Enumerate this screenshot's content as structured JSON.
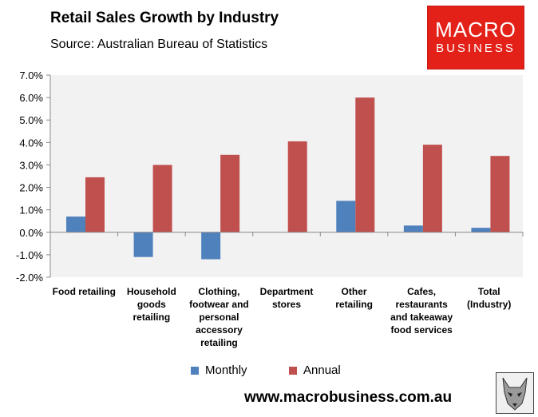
{
  "title": "Retail Sales Growth by Industry",
  "subtitle": "Source: Australian Bureau of Statistics",
  "logo": {
    "line1": "MACRO",
    "line2": "BUSINESS"
  },
  "website": "www.macrobusiness.com.au",
  "colors": {
    "monthly": "#4f81bd",
    "annual": "#c0504d",
    "plot_bg": "#f2f2f2",
    "logo_bg": "#e32119"
  },
  "chart_data": {
    "type": "bar",
    "title": "Retail Sales Growth by Industry",
    "xlabel": "",
    "ylabel": "",
    "ylim": [
      -2.0,
      7.0
    ],
    "y_ticks": [
      "7.0%",
      "6.0%",
      "5.0%",
      "4.0%",
      "3.0%",
      "2.0%",
      "1.0%",
      "0.0%",
      "-1.0%",
      "-2.0%"
    ],
    "y_tick_values": [
      7,
      6,
      5,
      4,
      3,
      2,
      1,
      0,
      -1,
      -2
    ],
    "categories": [
      [
        "Food retailing"
      ],
      [
        "Household",
        "goods",
        "retailing"
      ],
      [
        "Clothing,",
        "footwear and",
        "personal",
        "accessory",
        "retailing"
      ],
      [
        "Department",
        "stores"
      ],
      [
        "Other",
        "retailing"
      ],
      [
        "Cafes,",
        "restaurants",
        "and takeaway",
        "food services"
      ],
      [
        "Total",
        "(Industry)"
      ]
    ],
    "series": [
      {
        "name": "Monthly",
        "values": [
          0.7,
          -1.1,
          -1.2,
          0.0,
          1.4,
          0.3,
          0.2
        ]
      },
      {
        "name": "Annual",
        "values": [
          2.45,
          3.0,
          3.45,
          4.05,
          6.0,
          3.9,
          3.4
        ]
      }
    ],
    "legend_position": "bottom"
  }
}
